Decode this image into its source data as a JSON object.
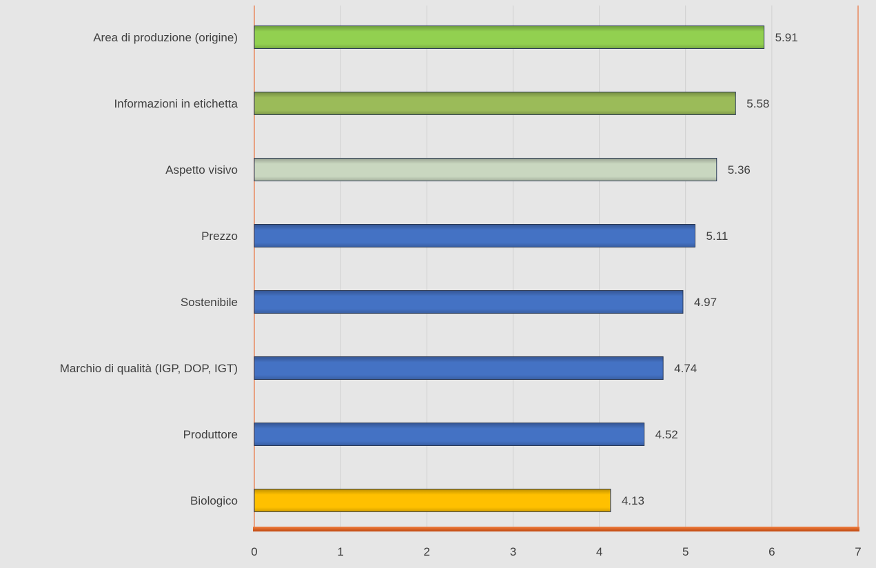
{
  "chart_data": {
    "type": "bar",
    "orientation": "horizontal",
    "categories": [
      "Area di produzione (origine)",
      "Informazioni in etichetta",
      "Aspetto visivo",
      "Prezzo",
      "Sostenibile",
      "Marchio di qualità (IGP, DOP, IGT)",
      "Produttore",
      "Biologico"
    ],
    "values": [
      5.91,
      5.58,
      5.36,
      5.11,
      4.97,
      4.74,
      4.52,
      4.13
    ],
    "value_labels": [
      "5.91",
      "5.58",
      "5.36",
      "5.11",
      "4.97",
      "4.74",
      "4.52",
      "4.13"
    ],
    "bar_colors": [
      "#92d050",
      "#9bbb59",
      "#c9d7c0",
      "#4472c4",
      "#4472c4",
      "#4472c4",
      "#4472c4",
      "#ffc000"
    ],
    "xlim": [
      0,
      7
    ],
    "xticks": [
      "0",
      "1",
      "2",
      "3",
      "4",
      "5",
      "6",
      "7"
    ],
    "title": "",
    "xlabel": "",
    "ylabel": "",
    "grid": true,
    "legend": "none"
  },
  "colors": {
    "background": "#e6e6e6",
    "gridline": "#d0d0d0",
    "axis_border": "#e8a080",
    "x_axis": "#d9581c",
    "bar_outline": "#2f3f5f"
  }
}
